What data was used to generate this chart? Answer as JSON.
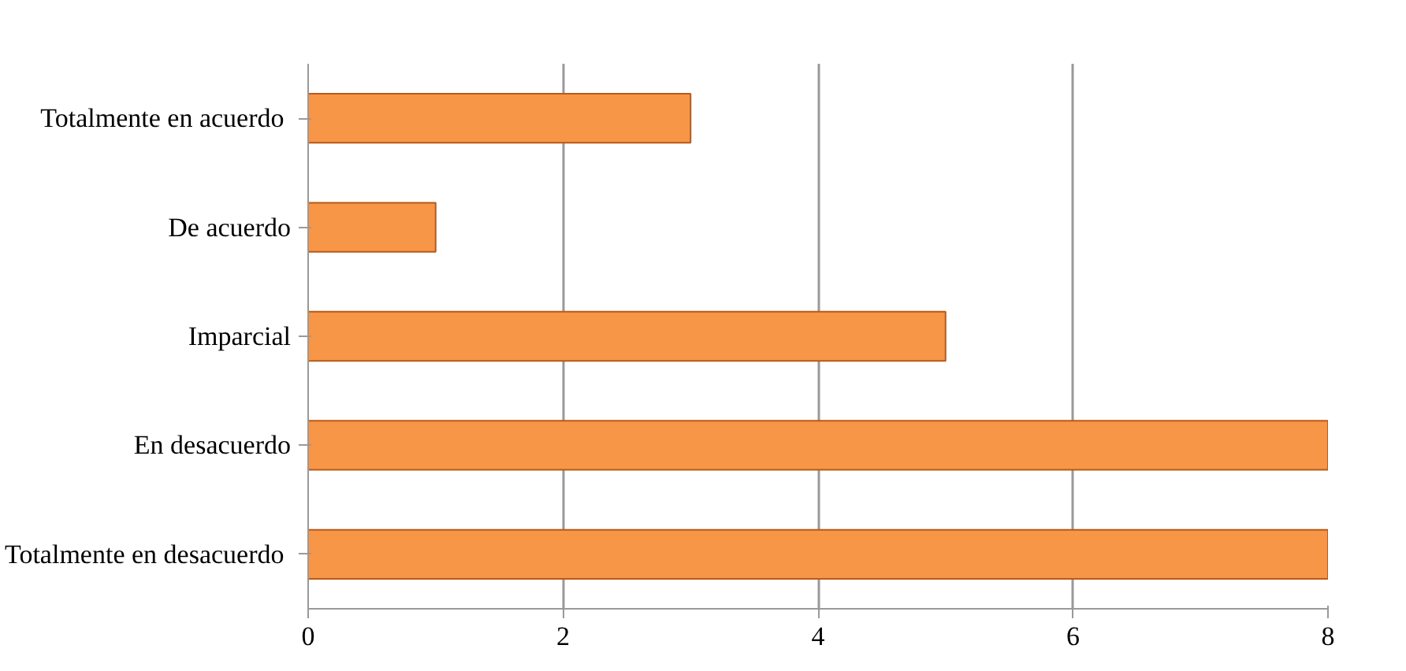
{
  "chart_data": {
    "type": "bar",
    "orientation": "horizontal",
    "categories": [
      "Totalmente  en acuerdo",
      "De acuerdo",
      "Imparcial",
      "En desacuerdo",
      "Totalmente  en desacuerdo"
    ],
    "values": [
      3,
      1,
      5,
      8,
      8
    ],
    "color": "#f79646",
    "xlim": [
      0,
      8
    ],
    "xticks": [
      0,
      2,
      4,
      6,
      8
    ],
    "grid": "x"
  }
}
